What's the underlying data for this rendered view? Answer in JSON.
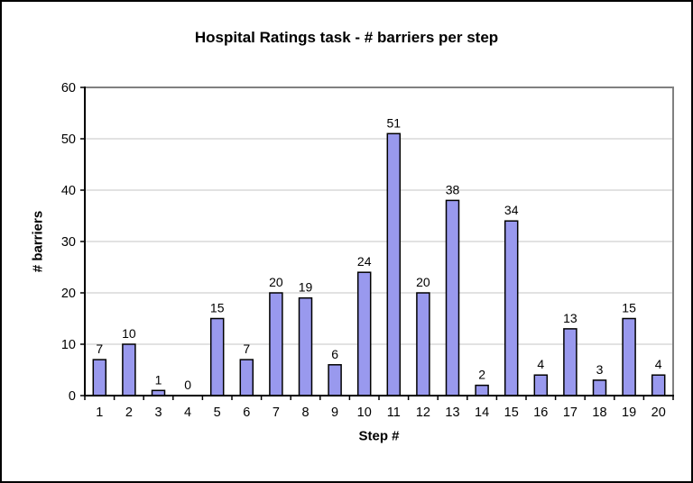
{
  "page": {
    "background": "#FFFFFF",
    "outer_border_color": "#000000"
  },
  "chart_data": {
    "type": "bar",
    "title": "Hospital Ratings task - # barriers per step",
    "xlabel": "Step #",
    "ylabel": "# barriers",
    "categories": [
      "1",
      "2",
      "3",
      "4",
      "5",
      "6",
      "7",
      "8",
      "9",
      "10",
      "11",
      "12",
      "13",
      "14",
      "15",
      "16",
      "17",
      "18",
      "19",
      "20"
    ],
    "values": [
      7,
      10,
      1,
      0,
      15,
      7,
      20,
      19,
      6,
      24,
      51,
      20,
      38,
      2,
      34,
      4,
      13,
      3,
      15,
      4
    ],
    "ylim": [
      0,
      60
    ],
    "yticks": [
      0,
      10,
      20,
      30,
      40,
      50,
      60
    ],
    "grid": "horizontal",
    "legend": "none",
    "data_labels": true,
    "colors": {
      "bar_fill": "#9999EE",
      "bar_border": "#000000",
      "gridline": "#C6C6C6",
      "plot_border": "#808080",
      "axis": "#000000",
      "label_text": "#000000"
    }
  }
}
